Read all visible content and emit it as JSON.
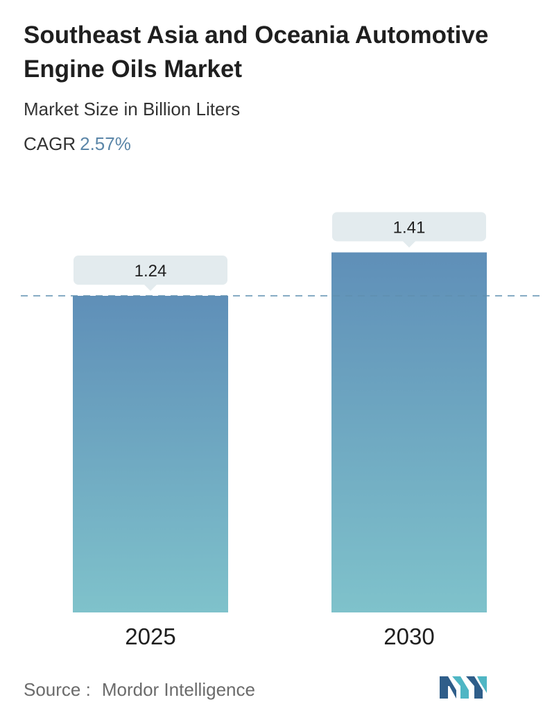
{
  "header": {
    "title": "Southeast Asia and Oceania Automotive Engine Oils Market",
    "subtitle": "Market Size in Billion Liters",
    "cagr_label": "CAGR",
    "cagr_value": "2.57%"
  },
  "chart_data": {
    "type": "bar",
    "title": "Southeast Asia and Oceania Automotive Engine Oils Market",
    "subtitle": "Market Size in Billion Liters",
    "categories": [
      "2025",
      "2030"
    ],
    "values": [
      1.24,
      1.41
    ],
    "value_labels": [
      "1.24",
      "1.41"
    ],
    "xlabel": "",
    "ylabel": "",
    "grid": false,
    "reference_line": 1.24
  },
  "footer": {
    "source_label": "Source :",
    "source_value": "Mordor Intelligence"
  },
  "colors": {
    "bar_top": "#5f8fb8",
    "bar_bottom": "#7fc2cb",
    "label_bubble": "#e3ebee",
    "dashed_line": "#5f8fb0",
    "cagr_accent": "#5b86a8",
    "logo_dark": "#2f5e8a",
    "logo_light": "#4fb6c4"
  },
  "logo": {
    "icon": "mordor-intelligence-logo-icon"
  }
}
